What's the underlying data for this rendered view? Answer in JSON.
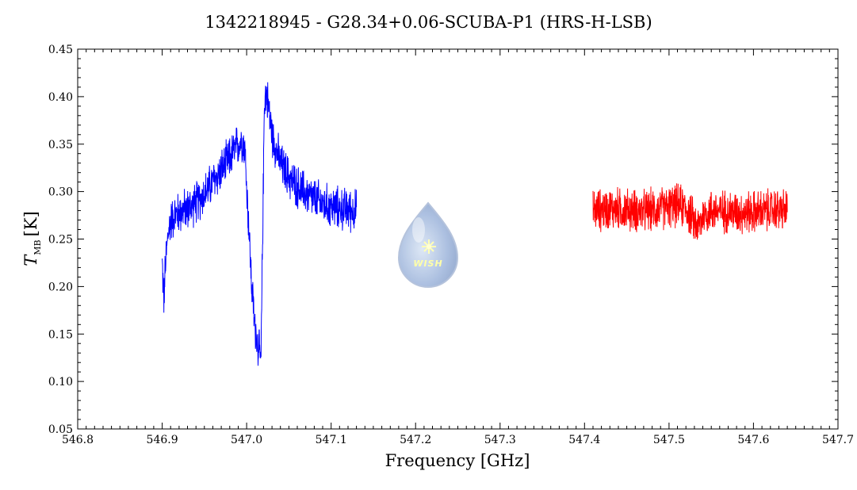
{
  "chart_data": {
    "type": "line",
    "title": "1342218945 - G28.34+0.06-SCUBA-P1 (HRS-H-LSB)",
    "xlabel": "Frequency [GHz]",
    "ylabel_main": "T",
    "ylabel_sub": "MB",
    "ylabel_unit": "[K]",
    "xlim": [
      546.8,
      547.7
    ],
    "ylim": [
      0.05,
      0.45
    ],
    "x_ticks": [
      546.8,
      546.9,
      547.0,
      547.1,
      547.2,
      547.3,
      547.4,
      547.5,
      547.6,
      547.7
    ],
    "x_tick_labels": [
      "546.8",
      "546.9",
      "547.0",
      "547.1",
      "547.2",
      "547.3",
      "547.4",
      "547.5",
      "547.6",
      "547.7"
    ],
    "y_ticks": [
      0.05,
      0.1,
      0.15,
      0.2,
      0.25,
      0.3,
      0.35,
      0.4,
      0.45
    ],
    "y_tick_labels": [
      "0.05",
      "0.10",
      "0.15",
      "0.20",
      "0.25",
      "0.30",
      "0.35",
      "0.40",
      "0.45"
    ],
    "grid": false,
    "logo_text": "WISH",
    "series": [
      {
        "color": "#0000ff",
        "x": [
          546.9,
          546.902,
          546.904,
          546.907,
          546.91,
          546.915,
          546.92,
          546.93,
          546.94,
          546.95,
          546.96,
          546.97,
          546.98,
          546.99,
          546.995,
          546.998,
          547.0,
          547.003,
          547.006,
          547.009,
          547.012,
          547.015,
          547.017,
          547.019,
          547.021,
          547.023,
          547.026,
          547.03,
          547.035,
          547.04,
          547.05,
          547.06,
          547.07,
          547.08,
          547.09,
          547.1,
          547.11,
          547.12,
          547.13
        ],
        "y": [
          0.225,
          0.185,
          0.225,
          0.255,
          0.27,
          0.275,
          0.278,
          0.282,
          0.288,
          0.298,
          0.31,
          0.322,
          0.335,
          0.35,
          0.355,
          0.345,
          0.305,
          0.255,
          0.2,
          0.165,
          0.145,
          0.13,
          0.12,
          0.26,
          0.395,
          0.405,
          0.39,
          0.36,
          0.345,
          0.33,
          0.315,
          0.305,
          0.298,
          0.292,
          0.287,
          0.284,
          0.282,
          0.281,
          0.28
        ]
      },
      {
        "color": "#ff0000",
        "x": [
          547.41,
          547.43,
          547.45,
          547.47,
          547.49,
          547.5,
          547.51,
          547.52,
          547.53,
          547.535,
          547.54,
          547.55,
          547.57,
          547.59,
          547.61,
          547.625,
          547.64
        ],
        "y": [
          0.28,
          0.282,
          0.281,
          0.279,
          0.282,
          0.284,
          0.285,
          0.283,
          0.268,
          0.262,
          0.275,
          0.28,
          0.279,
          0.278,
          0.279,
          0.281,
          0.28
        ]
      }
    ]
  }
}
